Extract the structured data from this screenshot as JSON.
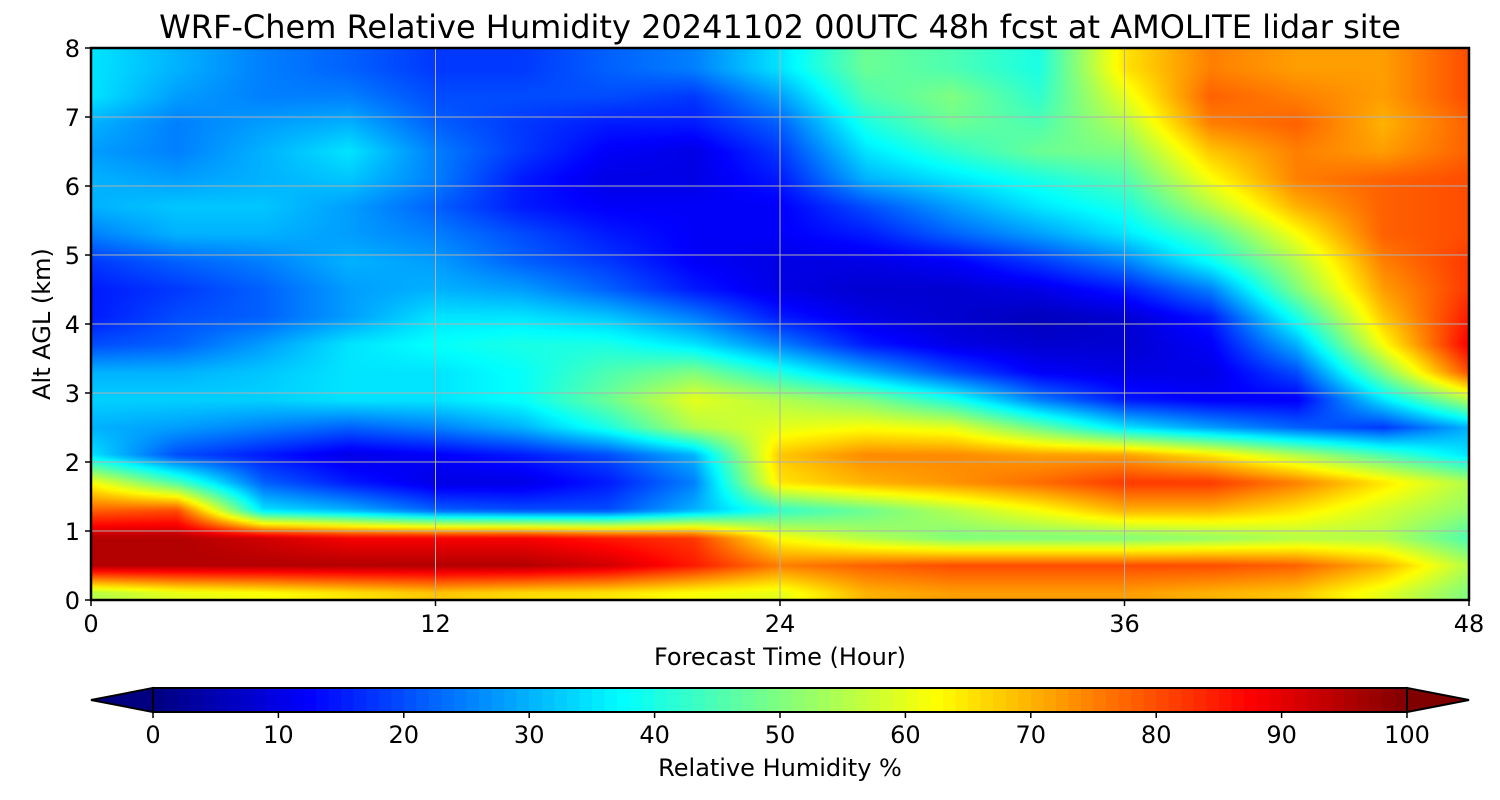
{
  "chart_data": {
    "type": "heatmap",
    "title": "WRF-Chem Relative Humidity 20241102 00UTC 48h fcst at AMOLITE lidar site",
    "xlabel": "Forecast Time (Hour)",
    "ylabel": "Alt AGL (km)",
    "xlim": [
      0,
      48
    ],
    "ylim": [
      0,
      8
    ],
    "x_ticks": [
      0,
      12,
      24,
      36,
      48
    ],
    "y_ticks": [
      0,
      1,
      2,
      3,
      4,
      5,
      6,
      7,
      8
    ],
    "grid": true,
    "colormap": "jet",
    "colorbar": {
      "label": "Relative Humidity %",
      "range": [
        0,
        100
      ],
      "ticks": [
        0,
        10,
        20,
        30,
        40,
        50,
        60,
        70,
        80,
        90,
        100
      ],
      "extend": "both",
      "orientation": "horizontal"
    },
    "x": [
      0,
      3,
      6,
      9,
      12,
      15,
      18,
      21,
      24,
      27,
      30,
      33,
      36,
      39,
      42,
      45,
      48
    ],
    "z_levels_km": [
      0.1,
      0.5,
      0.9,
      1.3,
      1.7,
      2.1,
      2.5,
      2.9,
      3.3,
      3.7,
      4.1,
      4.5,
      4.9,
      5.3,
      5.7,
      6.1,
      6.5,
      6.9,
      7.3,
      7.7
    ],
    "values": [
      [
        55,
        60,
        62,
        65,
        68,
        66,
        65,
        62,
        60,
        70,
        72,
        72,
        72,
        70,
        68,
        60,
        50
      ],
      [
        95,
        95,
        95,
        95,
        95,
        95,
        92,
        85,
        75,
        78,
        80,
        80,
        80,
        80,
        78,
        70,
        55
      ],
      [
        95,
        95,
        92,
        88,
        88,
        88,
        85,
        82,
        62,
        55,
        50,
        50,
        50,
        52,
        55,
        55,
        45
      ],
      [
        78,
        80,
        35,
        30,
        22,
        20,
        20,
        30,
        42,
        48,
        55,
        62,
        70,
        70,
        65,
        58,
        52
      ],
      [
        62,
        45,
        22,
        15,
        10,
        10,
        15,
        25,
        65,
        70,
        73,
        77,
        82,
        82,
        75,
        65,
        55
      ],
      [
        35,
        20,
        15,
        10,
        12,
        15,
        20,
        30,
        68,
        74,
        74,
        72,
        72,
        65,
        55,
        45,
        35
      ],
      [
        30,
        28,
        25,
        22,
        25,
        30,
        40,
        55,
        60,
        62,
        60,
        48,
        35,
        28,
        22,
        18,
        30
      ],
      [
        33,
        33,
        33,
        35,
        35,
        38,
        48,
        60,
        55,
        50,
        40,
        25,
        15,
        12,
        12,
        35,
        55
      ],
      [
        30,
        30,
        32,
        35,
        35,
        38,
        45,
        50,
        40,
        30,
        20,
        12,
        10,
        10,
        20,
        50,
        80
      ],
      [
        20,
        22,
        28,
        35,
        38,
        40,
        40,
        35,
        25,
        15,
        10,
        8,
        8,
        12,
        30,
        62,
        88
      ],
      [
        15,
        20,
        22,
        28,
        35,
        35,
        32,
        25,
        15,
        10,
        8,
        6,
        8,
        15,
        40,
        68,
        85
      ],
      [
        15,
        18,
        22,
        28,
        30,
        28,
        22,
        15,
        10,
        8,
        8,
        10,
        15,
        25,
        50,
        72,
        82
      ],
      [
        18,
        22,
        25,
        30,
        28,
        22,
        18,
        12,
        10,
        10,
        12,
        18,
        25,
        38,
        55,
        75,
        82
      ],
      [
        25,
        30,
        30,
        28,
        25,
        20,
        15,
        12,
        12,
        15,
        22,
        28,
        35,
        45,
        62,
        78,
        80
      ],
      [
        30,
        32,
        32,
        28,
        22,
        15,
        12,
        12,
        12,
        20,
        28,
        35,
        40,
        55,
        70,
        78,
        80
      ],
      [
        30,
        28,
        30,
        32,
        25,
        15,
        10,
        10,
        15,
        30,
        35,
        40,
        45,
        62,
        75,
        78,
        80
      ],
      [
        28,
        25,
        30,
        35,
        25,
        18,
        12,
        10,
        18,
        35,
        42,
        48,
        50,
        68,
        75,
        72,
        78
      ],
      [
        30,
        25,
        28,
        30,
        22,
        18,
        15,
        15,
        22,
        40,
        48,
        45,
        55,
        75,
        78,
        70,
        78
      ],
      [
        35,
        28,
        25,
        25,
        20,
        20,
        20,
        18,
        28,
        45,
        50,
        42,
        60,
        78,
        75,
        72,
        80
      ],
      [
        35,
        30,
        25,
        22,
        18,
        18,
        22,
        25,
        35,
        48,
        45,
        40,
        65,
        75,
        72,
        72,
        80
      ]
    ]
  }
}
